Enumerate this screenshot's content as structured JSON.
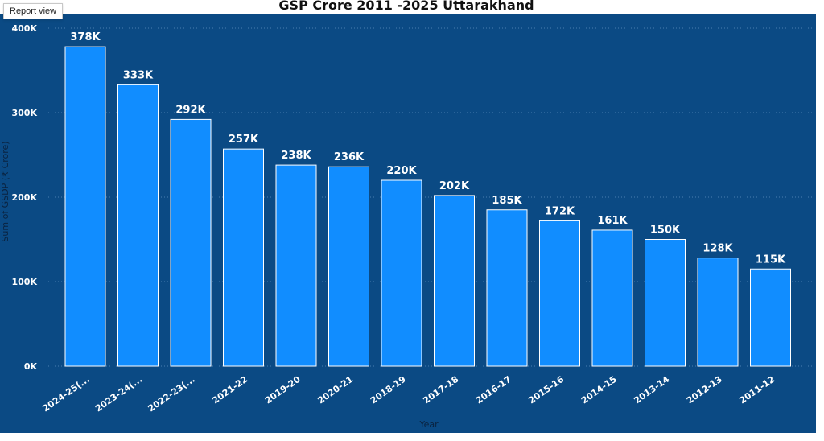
{
  "tooltip": "Report view",
  "chart_data": {
    "type": "bar",
    "title": "GSP Crore 2011 -2025 Uttarakhand",
    "xlabel": "Year",
    "ylabel": "Sum of GSDP (₹ Crore)",
    "categories": [
      "2024-25(...",
      "2023-24(...",
      "2022-23(...",
      "2021-22",
      "2019-20",
      "2020-21",
      "2018-19",
      "2017-18",
      "2016-17",
      "2015-16",
      "2014-15",
      "2013-14",
      "2012-13",
      "2011-12"
    ],
    "values": [
      378000,
      333000,
      292000,
      257000,
      238000,
      236000,
      220000,
      202000,
      185000,
      172000,
      161000,
      150000,
      128000,
      115000
    ],
    "data_labels": [
      "378K",
      "333K",
      "292K",
      "257K",
      "238K",
      "236K",
      "220K",
      "202K",
      "185K",
      "172K",
      "161K",
      "150K",
      "128K",
      "115K"
    ],
    "yticks": [
      0,
      100000,
      200000,
      300000,
      400000
    ],
    "ytick_labels": [
      "0K",
      "100K",
      "200K",
      "300K",
      "400K"
    ],
    "ylim": [
      0,
      400000
    ],
    "grid": true,
    "colors": {
      "bar": "#118dff",
      "bar_outline": "#ffffff",
      "background": "#0b4a84",
      "grid": "#4a7fb0"
    }
  }
}
